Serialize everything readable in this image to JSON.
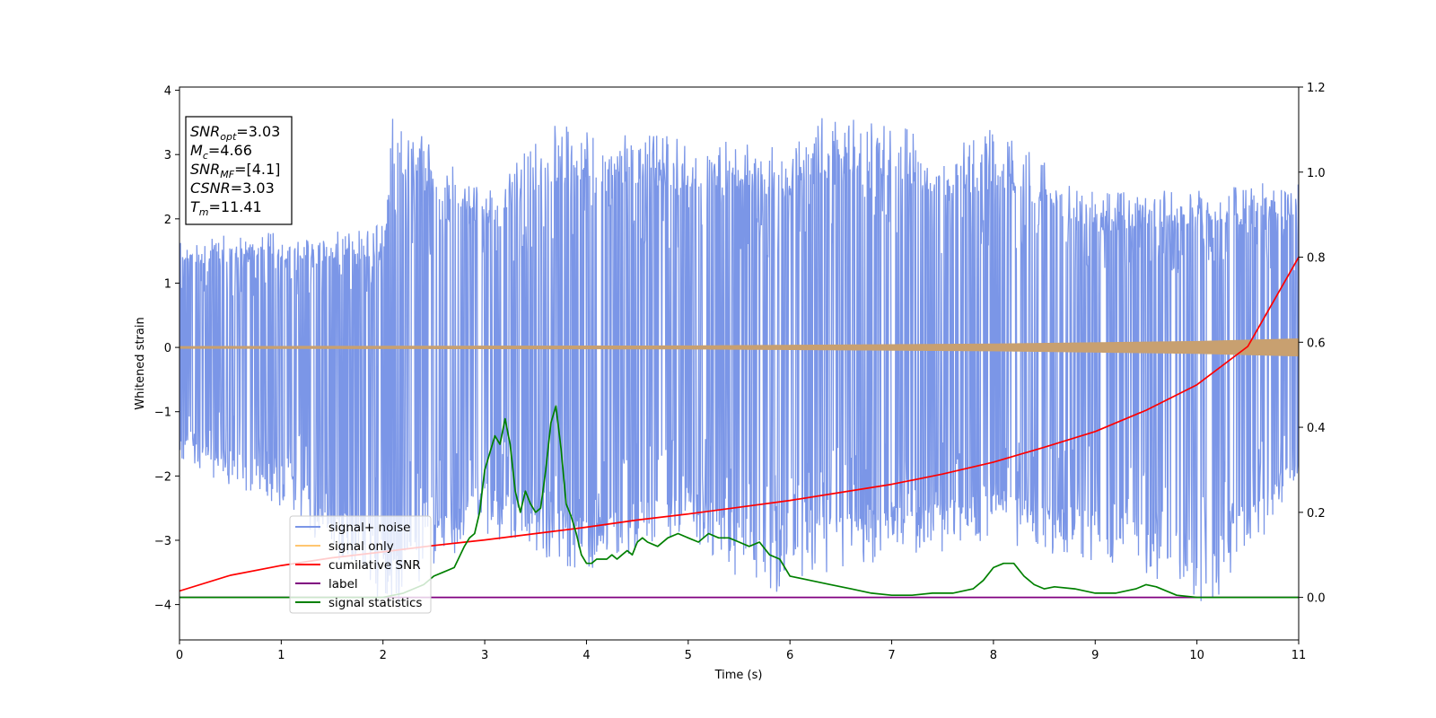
{
  "chart_data": {
    "type": "line",
    "xlabel": "Time (s)",
    "ylabel": "Whitened strain",
    "y2label": "",
    "xlim": [
      0,
      11
    ],
    "ylim": [
      -4.55,
      4.05
    ],
    "y2lim": [
      -0.1,
      1.2
    ],
    "x_ticks": [
      "0",
      "1",
      "2",
      "3",
      "4",
      "5",
      "6",
      "7",
      "8",
      "9",
      "10",
      "11"
    ],
    "y_ticks": [
      "−4",
      "−3",
      "−2",
      "−1",
      "0",
      "1",
      "2",
      "3",
      "4"
    ],
    "y2_ticks": [
      "0.0",
      "0.2",
      "0.4",
      "0.6",
      "0.8",
      "1.0",
      "1.2"
    ],
    "grid": false,
    "legend_position": "lower-left",
    "annotation": {
      "lines": [
        {
          "sym": "SNR",
          "sub": "opt",
          "value": "=3.03"
        },
        {
          "sym": "M",
          "sub": "c",
          "value": "=4.66"
        },
        {
          "sym": "SNR",
          "sub": "MF",
          "value": "=[4.1]"
        },
        {
          "sym": "CSNR",
          "sub": "",
          "value": "=3.03"
        },
        {
          "sym": "T",
          "sub": "m",
          "value": "=11.41"
        }
      ]
    },
    "series": [
      {
        "name": "signal+ noise",
        "color": "#7b96e7",
        "axis": "left",
        "style": "noise",
        "envelope_top": [
          [
            0,
            1.7
          ],
          [
            1,
            1.8
          ],
          [
            2,
            1.9
          ],
          [
            2.1,
            3.65
          ],
          [
            3,
            2.5
          ],
          [
            3.7,
            3.5
          ],
          [
            5,
            3.3
          ],
          [
            6,
            3.1
          ],
          [
            6.3,
            3.6
          ],
          [
            7,
            3.55
          ],
          [
            7.5,
            3.15
          ],
          [
            8,
            3.4
          ],
          [
            9,
            2.4
          ],
          [
            10,
            2.5
          ],
          [
            11,
            2.6
          ]
        ],
        "envelope_bottom": [
          [
            0,
            -1.8
          ],
          [
            1,
            -2.5
          ],
          [
            2.1,
            -4.15
          ],
          [
            3,
            -2.9
          ],
          [
            4,
            -3.55
          ],
          [
            5,
            -2.9
          ],
          [
            5.7,
            -3.95
          ],
          [
            6.2,
            -3.55
          ],
          [
            7,
            -3.3
          ],
          [
            8,
            -3.05
          ],
          [
            9.5,
            -3.55
          ],
          [
            10.15,
            -4.05
          ],
          [
            11,
            -2.2
          ]
        ]
      },
      {
        "name": "signal only",
        "color": "#c8a070",
        "axis": "left",
        "style": "chirp",
        "amplitude": [
          [
            0,
            0.02
          ],
          [
            5,
            0.03
          ],
          [
            8,
            0.06
          ],
          [
            10,
            0.1
          ],
          [
            11,
            0.14
          ]
        ]
      },
      {
        "name": "cumilative SNR",
        "color": "#ff0000",
        "axis": "right",
        "x": [
          0,
          0.5,
          1,
          1.5,
          2,
          2.5,
          3,
          3.5,
          4,
          4.5,
          5,
          5.5,
          6,
          6.5,
          7,
          7.5,
          8,
          8.5,
          9,
          9.5,
          10,
          10.5,
          11
        ],
        "y": [
          0.015,
          0.052,
          0.075,
          0.093,
          0.107,
          0.122,
          0.135,
          0.15,
          0.165,
          0.182,
          0.196,
          0.212,
          0.228,
          0.247,
          0.266,
          0.29,
          0.318,
          0.353,
          0.39,
          0.44,
          0.5,
          0.59,
          0.8
        ]
      },
      {
        "name": "label",
        "color": "#800080",
        "axis": "right",
        "x": [
          0,
          11
        ],
        "y": [
          0,
          0
        ]
      },
      {
        "name": "signal statistics",
        "color": "#008000",
        "axis": "right",
        "x": [
          0,
          2.0,
          2.2,
          2.4,
          2.5,
          2.6,
          2.7,
          2.8,
          2.85,
          2.9,
          2.95,
          3.0,
          3.05,
          3.1,
          3.15,
          3.2,
          3.25,
          3.3,
          3.35,
          3.4,
          3.45,
          3.5,
          3.55,
          3.6,
          3.65,
          3.7,
          3.75,
          3.8,
          3.85,
          3.9,
          3.95,
          4.0,
          4.05,
          4.1,
          4.15,
          4.2,
          4.25,
          4.3,
          4.35,
          4.4,
          4.45,
          4.5,
          4.55,
          4.6,
          4.7,
          4.8,
          4.9,
          5.0,
          5.1,
          5.2,
          5.3,
          5.4,
          5.5,
          5.6,
          5.7,
          5.8,
          5.9,
          6.0,
          6.2,
          6.4,
          6.6,
          6.8,
          7.0,
          7.2,
          7.4,
          7.6,
          7.8,
          7.9,
          8.0,
          8.1,
          8.2,
          8.3,
          8.4,
          8.5,
          8.6,
          8.8,
          9.0,
          9.2,
          9.4,
          9.5,
          9.6,
          9.8,
          10.0,
          10.2,
          10.4,
          10.6,
          10.8,
          11.0
        ],
        "y": [
          0,
          0,
          0.01,
          0.03,
          0.05,
          0.06,
          0.07,
          0.12,
          0.14,
          0.15,
          0.2,
          0.3,
          0.34,
          0.38,
          0.36,
          0.42,
          0.36,
          0.25,
          0.2,
          0.25,
          0.22,
          0.2,
          0.21,
          0.3,
          0.41,
          0.45,
          0.35,
          0.22,
          0.19,
          0.15,
          0.1,
          0.08,
          0.08,
          0.09,
          0.09,
          0.09,
          0.1,
          0.09,
          0.1,
          0.11,
          0.1,
          0.13,
          0.14,
          0.13,
          0.12,
          0.14,
          0.15,
          0.14,
          0.13,
          0.15,
          0.14,
          0.14,
          0.13,
          0.12,
          0.13,
          0.1,
          0.09,
          0.05,
          0.04,
          0.03,
          0.02,
          0.01,
          0.005,
          0.005,
          0.01,
          0.01,
          0.02,
          0.04,
          0.07,
          0.08,
          0.08,
          0.05,
          0.03,
          0.02,
          0.025,
          0.02,
          0.01,
          0.01,
          0.02,
          0.03,
          0.025,
          0.005,
          0.0,
          0.0,
          0.0,
          0.0,
          0.0,
          0.0
        ]
      }
    ]
  }
}
